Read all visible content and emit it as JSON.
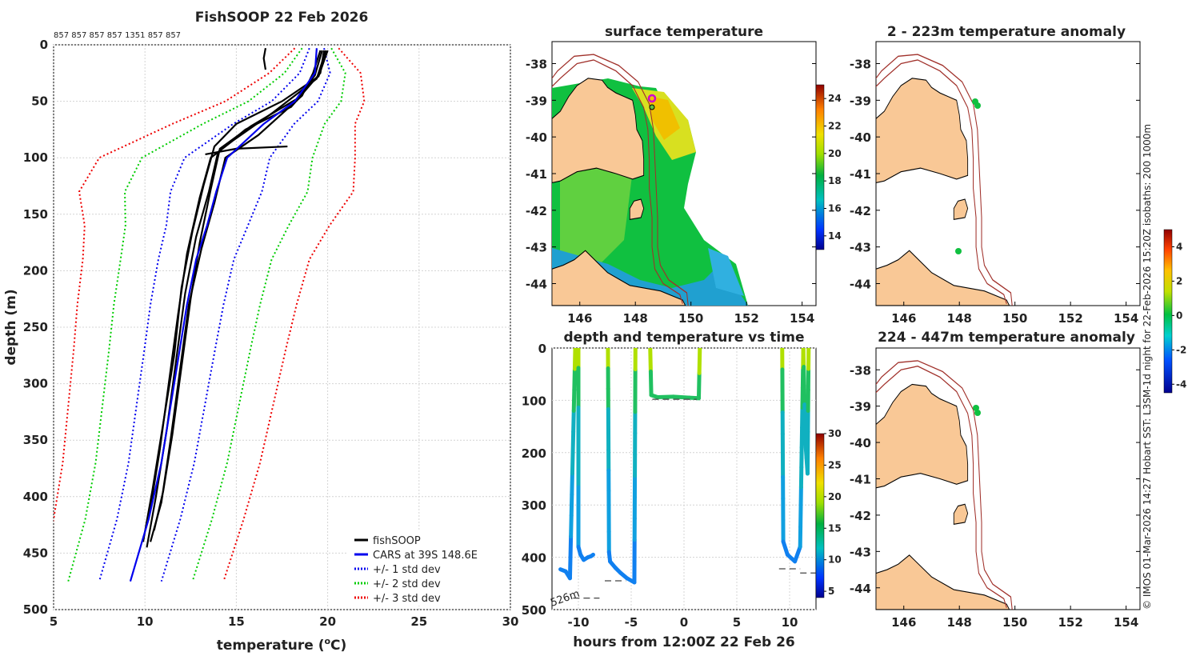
{
  "chart_data": [
    {
      "type": "line",
      "title": "FishSOOP 22 Feb 2026",
      "top_labels": "857 857 857 857 1351 857 857",
      "xlabel": "temperature (",
      "xlabel_sup": "o",
      "xlabel_end": "C)",
      "ylabel": "depth (m)",
      "xlim": [
        5,
        30
      ],
      "ylim": [
        0,
        500
      ],
      "xticks": [
        5,
        10,
        15,
        20,
        25,
        30
      ],
      "yticks": [
        0,
        50,
        100,
        150,
        200,
        250,
        300,
        350,
        400,
        450,
        500
      ],
      "legend": [
        {
          "label": "fishSOOP",
          "color": "#000000",
          "style": "solid"
        },
        {
          "label": "CARS at 39S 148.6E",
          "color": "#0000ee",
          "style": "solid"
        },
        {
          "label": "+/- 1 std dev",
          "color": "#0000ee",
          "style": "dotted"
        },
        {
          "label": "+/- 2 std dev",
          "color": "#00cc00",
          "style": "dotted"
        },
        {
          "label": "+/- 3 std dev",
          "color": "#ee0000",
          "style": "dotted"
        }
      ],
      "cars": {
        "temp": [
          19.4,
          19.3,
          18.2,
          16.5,
          14.5,
          13.9,
          13.4,
          12.8,
          12.3,
          11.9,
          11.4,
          10.9,
          10.2,
          9.2
        ],
        "depth": [
          3,
          25,
          50,
          70,
          100,
          130,
          160,
          190,
          230,
          270,
          320,
          370,
          420,
          475
        ]
      },
      "sd_offsets": [
        1.2,
        2.5,
        3.8,
        5.0,
        7.0,
        7.5,
        6.7,
        6.2,
        6.0,
        5.8,
        5.6,
        5.4,
        5.2,
        5.1
      ],
      "profiles": [
        {
          "temp": [
            19.8,
            19.6,
            18.0,
            15.5,
            14.0,
            13.5,
            12.8,
            12.2,
            11.7,
            11.2,
            10.6,
            10.1
          ],
          "depth": [
            5,
            25,
            55,
            75,
            95,
            130,
            170,
            220,
            280,
            340,
            400,
            445
          ]
        },
        {
          "temp": [
            20.0,
            19.5,
            17.5,
            15.0,
            13.8,
            13.2,
            12.6,
            12.0,
            11.6,
            11.0,
            10.4,
            9.9
          ],
          "depth": [
            5,
            28,
            50,
            70,
            90,
            125,
            165,
            215,
            275,
            335,
            395,
            440
          ]
        },
        {
          "temp": [
            19.6,
            19.2,
            18.6,
            16.2,
            14.4,
            13.8,
            13.1,
            12.4,
            11.9,
            11.4,
            10.9,
            10.3
          ],
          "depth": [
            5,
            25,
            45,
            80,
            100,
            140,
            180,
            230,
            290,
            350,
            405,
            440
          ]
        },
        {
          "temp": [
            19.9,
            19.4,
            17.0,
            14.8,
            13.6,
            13.0,
            12.3,
            11.8,
            11.3,
            10.8,
            10.2
          ],
          "depth": [
            5,
            30,
            60,
            85,
            100,
            135,
            185,
            240,
            300,
            360,
            420
          ]
        },
        {
          "temp": [
            19.7,
            19.3,
            18.3,
            15.8,
            14.1,
            13.6,
            13.0,
            12.5,
            12.0,
            11.5,
            11.0,
            10.5
          ],
          "depth": [
            5,
            27,
            48,
            72,
            92,
            128,
            175,
            225,
            285,
            345,
            395,
            430
          ]
        },
        {
          "temp": [
            16.6,
            16.5,
            16.6
          ],
          "depth": [
            3,
            12,
            22
          ]
        },
        {
          "temp": [
            13.3,
            15.0,
            17.8
          ],
          "depth": [
            97,
            92,
            90
          ]
        }
      ]
    },
    {
      "type": "map",
      "title": "surface temperature",
      "xticks": [
        146,
        148,
        150,
        152,
        154
      ],
      "yticks": [
        -38,
        -39,
        -40,
        -41,
        -42,
        -43,
        -44
      ],
      "colorbar": {
        "min": 13,
        "max": 25,
        "ticks": [
          14,
          16,
          18,
          20,
          22,
          24
        ]
      }
    },
    {
      "type": "scatter",
      "title": "depth and temperature vs time",
      "xlabel": "hours from 12:00Z 22 Feb 26",
      "xlim": [
        -12.5,
        12.5
      ],
      "ylim": [
        0,
        500
      ],
      "xticks": [
        -10,
        -5,
        0,
        5,
        10
      ],
      "yticks": [
        0,
        100,
        200,
        300,
        400,
        500
      ],
      "annotation": "526m",
      "colorbar": {
        "min": 4,
        "max": 30,
        "ticks": [
          5,
          10,
          15,
          20,
          25,
          30
        ]
      },
      "tows": [
        {
          "t": [
            -10.0,
            -10.0,
            -9.8,
            -9.5,
            -9.1,
            -8.8,
            -8.6
          ],
          "d": [
            0,
            380,
            395,
            405,
            400,
            398,
            395
          ]
        },
        {
          "t": [
            -7.2,
            -7.1,
            -7.0,
            -6.5,
            -6.0,
            -5.4,
            -4.7
          ],
          "d": [
            0,
            390,
            408,
            420,
            430,
            440,
            448
          ]
        },
        {
          "t": [
            -4.7,
            -4.6
          ],
          "d": [
            448,
            0
          ]
        },
        {
          "t": [
            -3.2,
            -3.1,
            -2.5,
            -1.0,
            0.5,
            1.4,
            1.5
          ],
          "d": [
            0,
            90,
            94,
            93,
            95,
            96,
            0
          ]
        },
        {
          "t": [
            9.3,
            9.4,
            9.8,
            10.5,
            11.0,
            11.3
          ],
          "d": [
            0,
            370,
            395,
            408,
            380,
            0
          ]
        },
        {
          "t": [
            11.3,
            11.5,
            11.7,
            11.8
          ],
          "d": [
            0,
            180,
            240,
            0
          ]
        }
      ],
      "descent_first": {
        "t": [
          -11.7,
          -11.2,
          -10.8,
          -10.3
        ],
        "d": [
          423,
          427,
          440,
          0
        ]
      }
    },
    {
      "type": "map",
      "title": "2 - 223m temperature anomaly",
      "xticks": [
        146,
        148,
        150,
        152,
        154
      ],
      "yticks": [
        -38,
        -39,
        -40,
        -41,
        -42,
        -43,
        -44
      ]
    },
    {
      "type": "map",
      "title": "224 - 447m temperature anomaly",
      "xticks": [
        146,
        148,
        150,
        152,
        154
      ],
      "yticks": [
        -38,
        -39,
        -40,
        -41,
        -42,
        -43,
        -44
      ],
      "colorbar": {
        "min": -4.5,
        "max": 5,
        "ticks": [
          4,
          2,
          0,
          -2,
          -4
        ]
      }
    }
  ],
  "side_text": "© IMOS 01-Mar-2026 14:27 Hobart SST: L3SM-1d night for 22-Feb-2026 15:20Z isobaths: 200  1000m",
  "colors": {
    "land": "#f9c896",
    "isobath": "#a0302a",
    "grid": "#d0d0d0"
  }
}
